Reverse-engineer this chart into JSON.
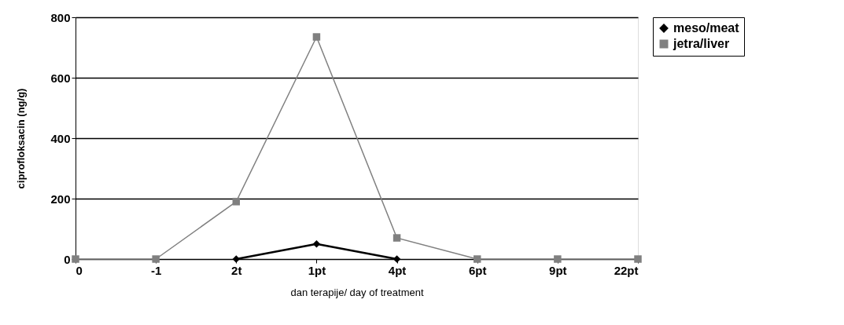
{
  "chart_data": {
    "type": "line",
    "xlabel": "dan terapije/ day of treatment",
    "ylabel": "ciprofloksacin (ng/g)",
    "categories": [
      "0",
      "-1",
      "2t",
      "1pt",
      "4pt",
      "6pt",
      "9pt",
      "22pt"
    ],
    "series": [
      {
        "name": "meso/meat",
        "color": "#000000",
        "marker": "diamond",
        "values": [
          null,
          null,
          0,
          50,
          0,
          null,
          null,
          null
        ]
      },
      {
        "name": "jetra/liver",
        "color": "#808080",
        "marker": "square",
        "values": [
          0,
          0,
          190,
          735,
          70,
          0,
          0,
          0
        ]
      }
    ],
    "ylim": [
      0,
      800
    ],
    "yticks": [
      0,
      200,
      400,
      600,
      800
    ],
    "grid": "y",
    "legend": "right",
    "line_style": "solid"
  }
}
